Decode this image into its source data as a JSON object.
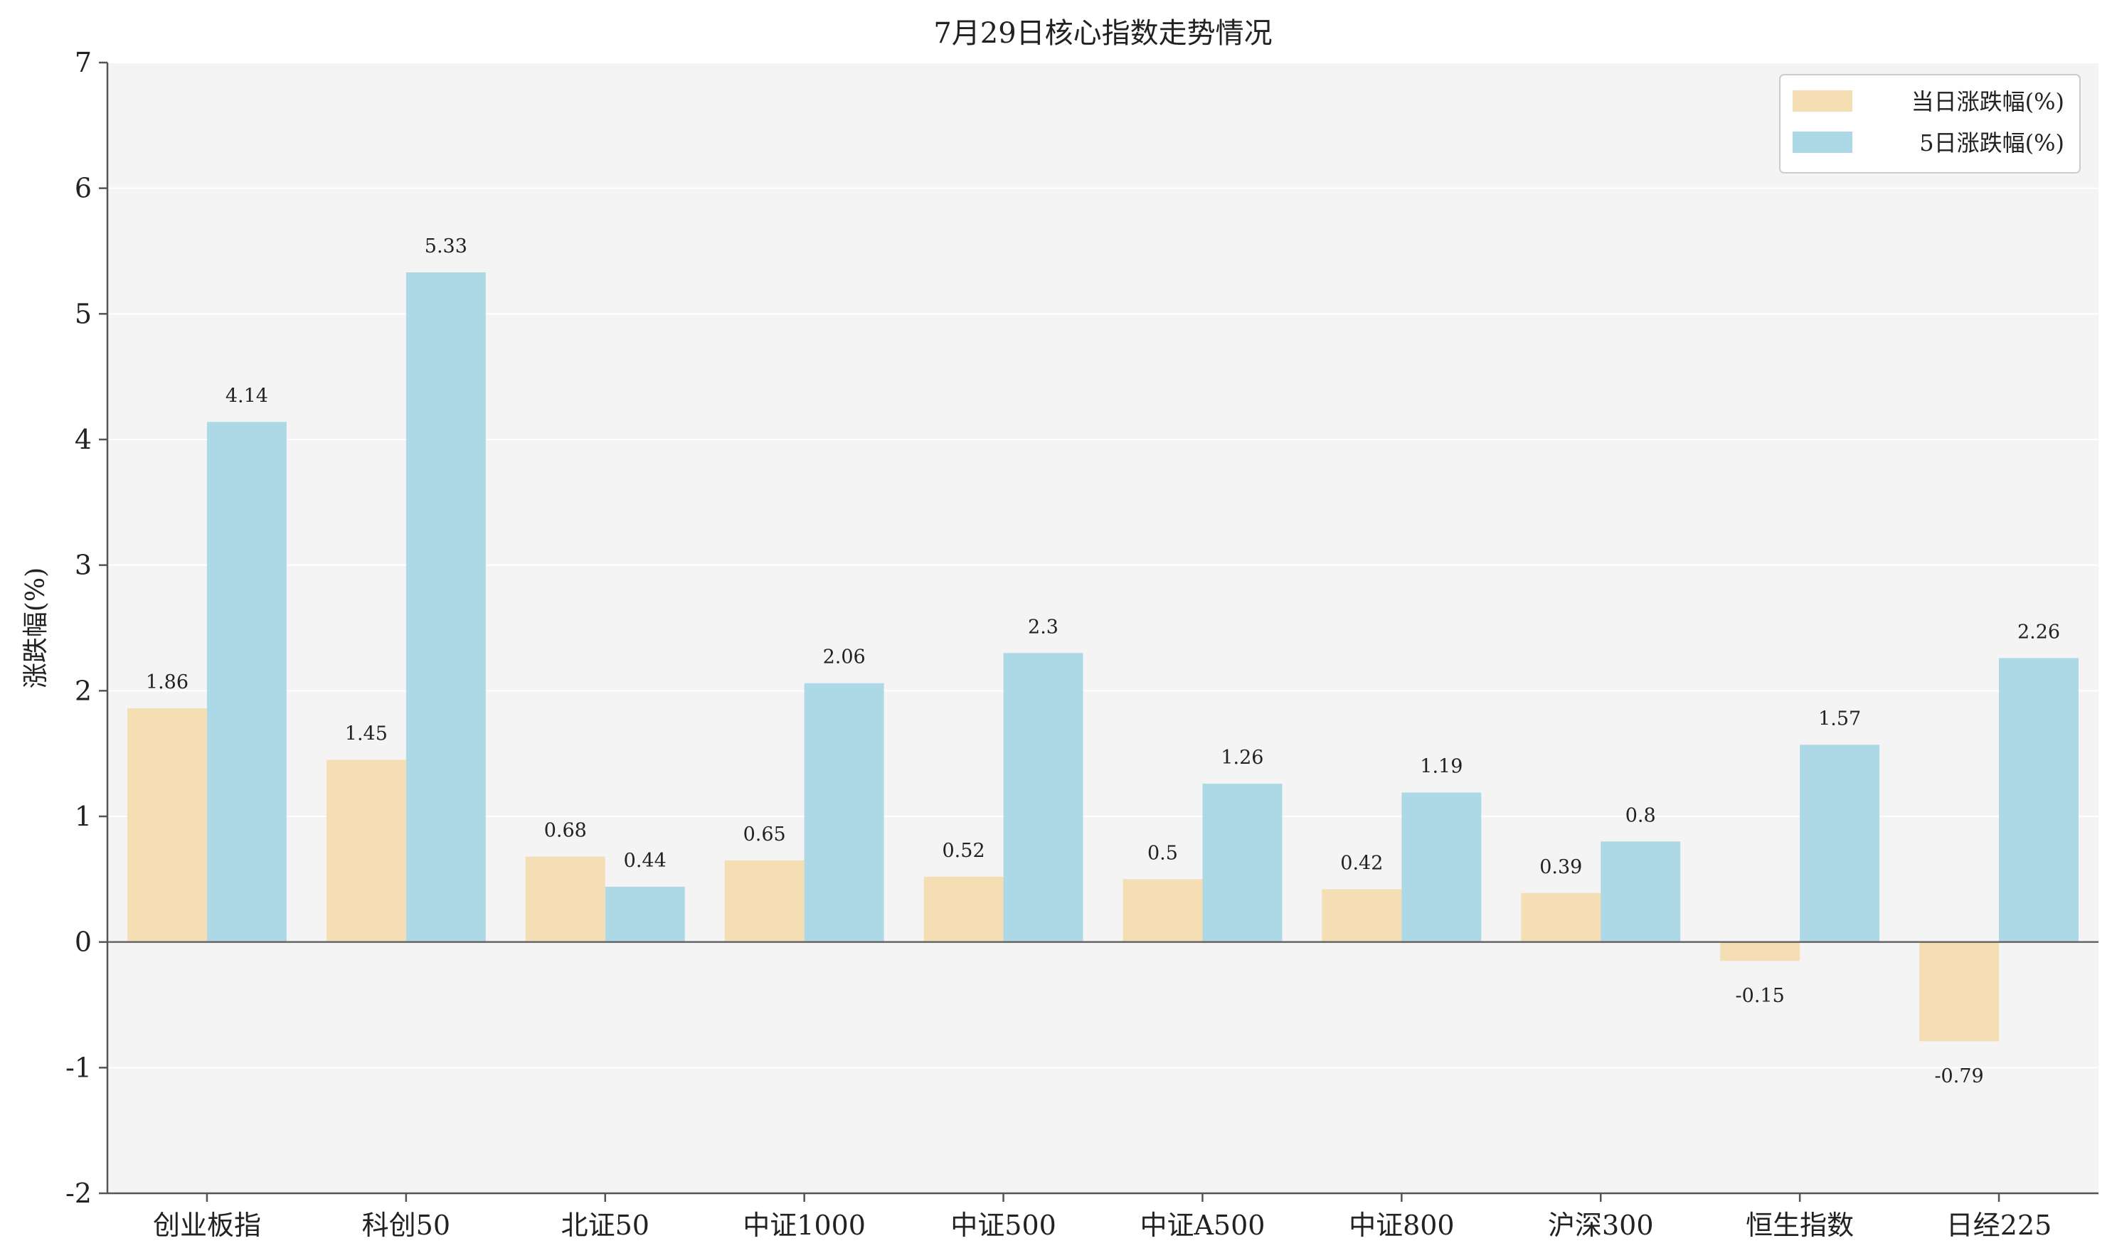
{
  "chart_data": {
    "type": "bar",
    "title": "7月29日核心指数走势情况",
    "xlabel": "",
    "ylabel": "涨跌幅(%)",
    "ylim": [
      -2,
      7
    ],
    "yticks": [
      -2,
      -1,
      0,
      1,
      2,
      3,
      4,
      5,
      6,
      7
    ],
    "grid": true,
    "legend_position": "top-right",
    "categories": [
      "创业板指",
      "科创50",
      "北证50",
      "中证1000",
      "中证500",
      "中证A500",
      "中证800",
      "沪深300",
      "恒生指数",
      "日经225"
    ],
    "series": [
      {
        "name": "当日涨跌幅(%)",
        "color": "#f5deb3",
        "values": [
          1.86,
          1.45,
          0.68,
          0.65,
          0.52,
          0.5,
          0.42,
          0.39,
          -0.15,
          -0.79
        ],
        "labels": [
          "1.86",
          "1.45",
          "0.68",
          "0.65",
          "0.52",
          "0.5",
          "0.42",
          "0.39",
          "-0.15",
          "-0.79"
        ]
      },
      {
        "name": "5日涨跌幅(%)",
        "color": "#add8e6",
        "values": [
          4.14,
          5.33,
          0.44,
          2.06,
          2.3,
          1.26,
          1.19,
          0.8,
          1.57,
          2.26
        ],
        "labels": [
          "4.14",
          "5.33",
          "0.44",
          "2.06",
          "2.3",
          "1.26",
          "1.19",
          "0.8",
          "1.57",
          "2.26"
        ]
      }
    ],
    "colors": {
      "plot_background": "#f4f4f4",
      "grid": "#ffffff",
      "axis": "#555555",
      "zero_line": "#666666"
    }
  }
}
